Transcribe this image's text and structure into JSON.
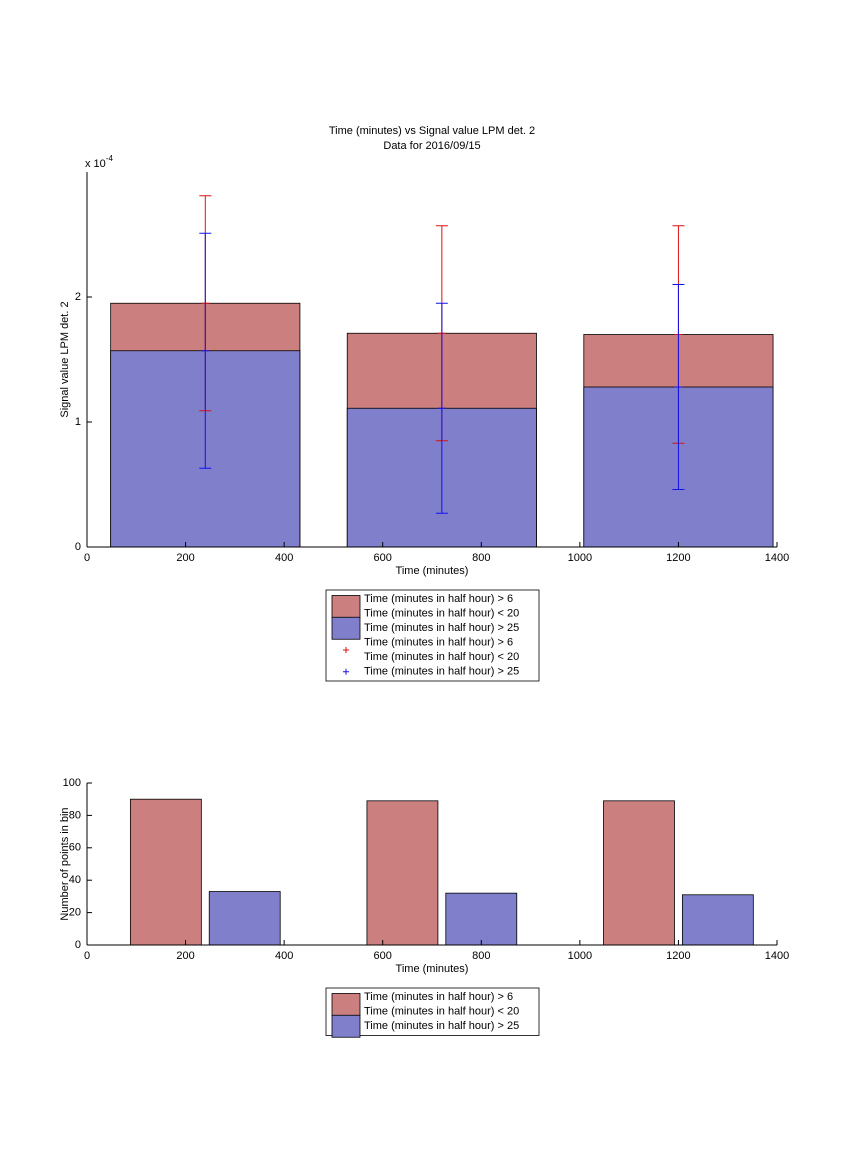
{
  "chart_data": [
    {
      "type": "bar_errorbar",
      "title": "Time (minutes) vs Signal value LPM det. 2",
      "subtitle": "Data for 2016/09/15",
      "xlabel": "Time (minutes)",
      "ylabel": "Signal value LPM det. 2",
      "y_multiplier": {
        "base": "x 10",
        "exponent": "-4"
      },
      "x": [
        240,
        720,
        1200
      ],
      "series": [
        {
          "name": [
            "Time (minutes in half hour) > 6",
            "Time (minutes in half hour) < 20"
          ],
          "color": "#cc7f7f",
          "error_color": "#dd1111",
          "values": [
            0.000195,
            0.000171,
            0.00017
          ],
          "errors": [
            8.6e-05,
            8.6e-05,
            8.7e-05
          ]
        },
        {
          "name": [
            "Time (minutes in half hour) > 25"
          ],
          "color": "#7f7fcc",
          "error_color": "#1111ee",
          "values": [
            0.000157,
            0.000111,
            0.000128
          ],
          "errors": [
            9.4e-05,
            8.4e-05,
            8.2e-05
          ]
        }
      ],
      "xlim": [
        0,
        1400
      ],
      "xticks": [
        0,
        200,
        400,
        600,
        800,
        1000,
        1200,
        1400
      ],
      "ylim": [
        0,
        0.0003
      ],
      "yticks": [
        0,
        {
          "value": 0.0001,
          "label": "1"
        },
        {
          "value": 0.0002,
          "label": "2"
        }
      ]
    },
    {
      "type": "grouped_bar",
      "xlabel": "Time (minutes)",
      "ylabel": "Number of points in bin",
      "x": [
        240,
        720,
        1200
      ],
      "series": [
        {
          "name": [
            "Time (minutes in half hour) > 6",
            "Time (minutes in half hour) < 20"
          ],
          "color": "#cc7f7f",
          "values": [
            90,
            89,
            89
          ]
        },
        {
          "name": [
            "Time (minutes in half hour) > 25"
          ],
          "color": "#7f7fcc",
          "values": [
            33,
            32,
            31
          ]
        }
      ],
      "xlim": [
        0,
        1400
      ],
      "xticks": [
        0,
        200,
        400,
        600,
        800,
        1000,
        1200,
        1400
      ],
      "ylim": [
        0,
        100
      ],
      "yticks": [
        0,
        20,
        40,
        60,
        80,
        100
      ]
    }
  ]
}
